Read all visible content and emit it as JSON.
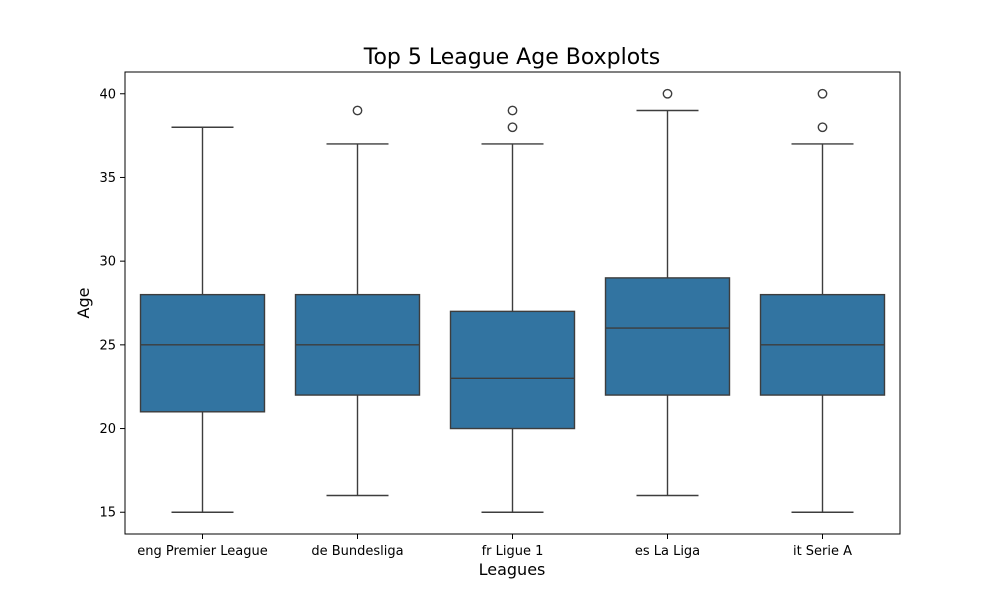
{
  "chart_data": {
    "type": "boxplot",
    "title": "Top 5 League Age Boxplots",
    "xlabel": "Leagues",
    "ylabel": "Age",
    "ylim": [
      13.7,
      41.3
    ],
    "yticks": [
      15,
      20,
      25,
      30,
      35,
      40
    ],
    "grid": false,
    "legend": "none",
    "box_color": "#3274a1",
    "line_color": "#3d3d3d",
    "categories": [
      "eng Premier League",
      "de Bundesliga",
      "fr Ligue 1",
      "es La Liga",
      "it Serie A"
    ],
    "boxes": [
      {
        "category": "eng Premier League",
        "whisker_low": 15,
        "q1": 21,
        "median": 25,
        "q3": 28,
        "whisker_high": 38,
        "outliers": []
      },
      {
        "category": "de Bundesliga",
        "whisker_low": 16,
        "q1": 22,
        "median": 25,
        "q3": 28,
        "whisker_high": 37,
        "outliers": [
          39
        ]
      },
      {
        "category": "fr Ligue 1",
        "whisker_low": 15,
        "q1": 20,
        "median": 23,
        "q3": 27,
        "whisker_high": 37,
        "outliers": [
          38,
          39
        ]
      },
      {
        "category": "es La Liga",
        "whisker_low": 16,
        "q1": 22,
        "median": 26,
        "q3": 29,
        "whisker_high": 39,
        "outliers": [
          40
        ]
      },
      {
        "category": "it Serie A",
        "whisker_low": 15,
        "q1": 22,
        "median": 25,
        "q3": 28,
        "whisker_high": 37,
        "outliers": [
          38,
          40
        ]
      }
    ]
  }
}
